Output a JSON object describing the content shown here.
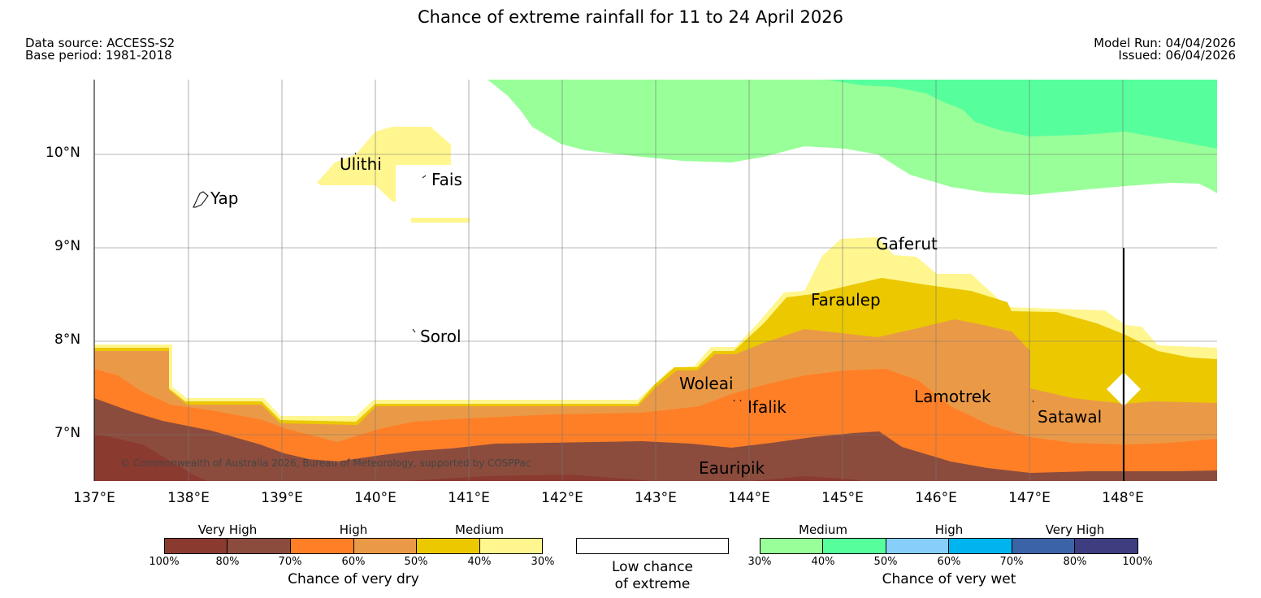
{
  "title": "Chance of extreme rainfall for 11 to 24 April 2026",
  "meta": {
    "data_source": "Data source: ACCESS-S2",
    "base_period": "Base period: 1981-2018",
    "model_run": "Model Run: 04/04/2026",
    "issued": "Issued: 06/04/2026"
  },
  "copyright": "© Commonwealth of Australia 2026, Bureau of Meteorology, supported by COSPPac",
  "axes": {
    "lon_ticks": [
      "137°E",
      "138°E",
      "139°E",
      "140°E",
      "141°E",
      "142°E",
      "143°E",
      "144°E",
      "145°E",
      "146°E",
      "147°E",
      "148°E"
    ],
    "lat_ticks": [
      "10°N",
      "9°N",
      "8°N",
      "7°N"
    ]
  },
  "places": [
    "Ulithi",
    "Fais",
    "Yap",
    "Gaferut",
    "Faraulep",
    "Sorol",
    "Woleai",
    "Ifalik",
    "Lamotrek",
    "Satawal",
    "Eauripik"
  ],
  "legend": {
    "dry": {
      "categories": [
        "Very High",
        "High",
        "Medium"
      ],
      "ticks": [
        "100%",
        "80%",
        "70%",
        "60%",
        "50%",
        "40%",
        "30%"
      ],
      "colors": [
        "#8b3a30",
        "#8b4c3d",
        "#ff7f27",
        "#ea9a47",
        "#ebc800",
        "#fff68f"
      ],
      "caption": "Chance of very dry"
    },
    "neutral": {
      "line1": "Low chance",
      "line2": "of extreme",
      "color": "#ffffff"
    },
    "wet": {
      "categories": [
        "Medium",
        "High",
        "Very High"
      ],
      "ticks": [
        "30%",
        "40%",
        "50%",
        "60%",
        "70%",
        "80%",
        "100%"
      ],
      "colors": [
        "#99ff99",
        "#57ff9c",
        "#87cefa",
        "#00b4f0",
        "#3b64a8",
        "#3d3d80"
      ],
      "caption": "Chance of very wet"
    }
  }
}
